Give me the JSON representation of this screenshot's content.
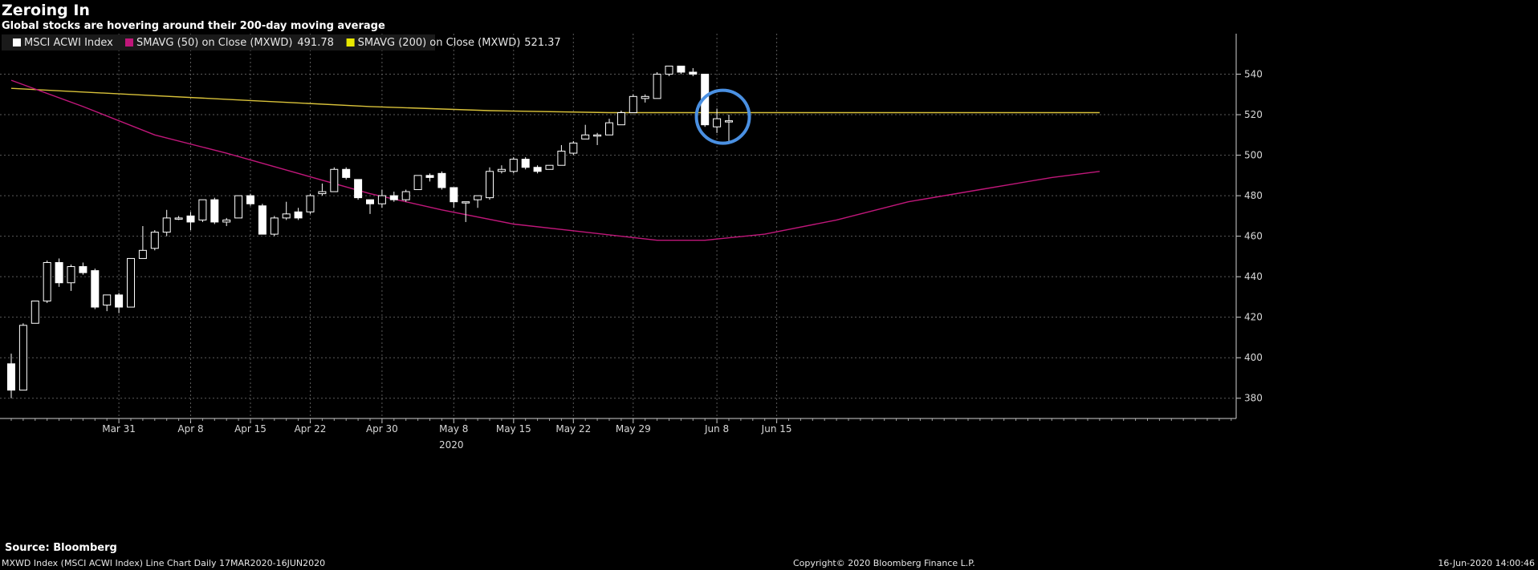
{
  "header": {
    "title": "Zeroing In",
    "subtitle": "Global stocks are hovering around their 200-day moving average"
  },
  "footer": {
    "source": "Source: Bloomberg",
    "left": "MXWD Index (MSCI ACWI Index) Line Chart  Daily 17MAR2020-16JUN2020",
    "center": "Copyright© 2020 Bloomberg Finance L.P.",
    "right": "16-Jun-2020 14:00:46"
  },
  "colors": {
    "background": "#000000",
    "grid": "#5a5a5a",
    "candle": "#ffffff",
    "sma50": "#c0177a",
    "sma200": "#d9c23a",
    "highlight_circle": "#4a90e2"
  },
  "chart_data": {
    "type": "candlestick",
    "year_label": "2020",
    "y_ticks": [
      380,
      400,
      420,
      440,
      460,
      480,
      500,
      520,
      540
    ],
    "ylim": [
      370,
      560
    ],
    "x_ticks": [
      "Mar 31",
      "Apr 8",
      "Apr 15",
      "Apr 22",
      "Apr 30",
      "May 8",
      "May 15",
      "May 22",
      "May 29",
      "Jun 8",
      "Jun 15"
    ],
    "x_tick_index": [
      9,
      15,
      20,
      25,
      31,
      37,
      42,
      47,
      52,
      59,
      64
    ],
    "legend": [
      {
        "label": "MSCI ACWI Index",
        "value": "",
        "color": "#ffffff"
      },
      {
        "label": "SMAVG (50)  on Close (MXWD)",
        "value": "491.78",
        "color": "#c0177a"
      },
      {
        "label": "SMAVG (200)  on Close (MXWD)",
        "value": "521.37",
        "color": "#e8e800"
      }
    ],
    "candles": [
      {
        "o": 397,
        "h": 402,
        "l": 380,
        "c": 384
      },
      {
        "o": 384,
        "h": 417,
        "l": 384,
        "c": 416
      },
      {
        "o": 417,
        "h": 428,
        "l": 417,
        "c": 428
      },
      {
        "o": 428,
        "h": 448,
        "l": 427,
        "c": 447
      },
      {
        "o": 447,
        "h": 449,
        "l": 435,
        "c": 437
      },
      {
        "o": 437,
        "h": 446,
        "l": 433,
        "c": 445
      },
      {
        "o": 445,
        "h": 447,
        "l": 441,
        "c": 442
      },
      {
        "o": 443,
        "h": 444,
        "l": 424,
        "c": 425
      },
      {
        "o": 426,
        "h": 431,
        "l": 423,
        "c": 431
      },
      {
        "o": 431,
        "h": 432,
        "l": 422,
        "c": 425
      },
      {
        "o": 425,
        "h": 449,
        "l": 425,
        "c": 449
      },
      {
        "o": 449,
        "h": 465,
        "l": 449,
        "c": 453
      },
      {
        "o": 454,
        "h": 463,
        "l": 453,
        "c": 462
      },
      {
        "o": 462,
        "h": 473,
        "l": 460,
        "c": 469
      },
      {
        "o": 469,
        "h": 470,
        "l": 468,
        "c": 469
      },
      {
        "o": 470,
        "h": 472,
        "l": 463,
        "c": 467
      },
      {
        "o": 468,
        "h": 478,
        "l": 467,
        "c": 478
      },
      {
        "o": 478,
        "h": 479,
        "l": 466,
        "c": 467
      },
      {
        "o": 467,
        "h": 469,
        "l": 465,
        "c": 468
      },
      {
        "o": 469,
        "h": 480,
        "l": 469,
        "c": 480
      },
      {
        "o": 480,
        "h": 481,
        "l": 475,
        "c": 476
      },
      {
        "o": 475,
        "h": 476,
        "l": 461,
        "c": 461
      },
      {
        "o": 461,
        "h": 470,
        "l": 460,
        "c": 469
      },
      {
        "o": 469,
        "h": 477,
        "l": 468,
        "c": 471
      },
      {
        "o": 472,
        "h": 474,
        "l": 468,
        "c": 469
      },
      {
        "o": 472,
        "h": 481,
        "l": 471,
        "c": 480
      },
      {
        "o": 481,
        "h": 486,
        "l": 480,
        "c": 482
      },
      {
        "o": 482,
        "h": 494,
        "l": 482,
        "c": 493
      },
      {
        "o": 493,
        "h": 494,
        "l": 488,
        "c": 489
      },
      {
        "o": 488,
        "h": 488,
        "l": 478,
        "c": 479
      },
      {
        "o": 478,
        "h": 478,
        "l": 471,
        "c": 476
      },
      {
        "o": 476,
        "h": 483,
        "l": 474,
        "c": 480
      },
      {
        "o": 480,
        "h": 482,
        "l": 477,
        "c": 478
      },
      {
        "o": 478,
        "h": 483,
        "l": 477,
        "c": 482
      },
      {
        "o": 483,
        "h": 490,
        "l": 483,
        "c": 490
      },
      {
        "o": 490,
        "h": 491,
        "l": 487,
        "c": 489
      },
      {
        "o": 491,
        "h": 492,
        "l": 483,
        "c": 484
      },
      {
        "o": 484,
        "h": 484,
        "l": 474,
        "c": 477
      },
      {
        "o": 477,
        "h": 477,
        "l": 467,
        "c": 477
      },
      {
        "o": 478,
        "h": 479,
        "l": 474,
        "c": 480
      },
      {
        "o": 479,
        "h": 494,
        "l": 478,
        "c": 492
      },
      {
        "o": 492,
        "h": 495,
        "l": 491,
        "c": 493
      },
      {
        "o": 492,
        "h": 499,
        "l": 491,
        "c": 498
      },
      {
        "o": 498,
        "h": 499,
        "l": 493,
        "c": 494
      },
      {
        "o": 494,
        "h": 495,
        "l": 491,
        "c": 492
      },
      {
        "o": 493,
        "h": 495,
        "l": 493,
        "c": 495
      },
      {
        "o": 495,
        "h": 505,
        "l": 495,
        "c": 502
      },
      {
        "o": 501,
        "h": 507,
        "l": 500,
        "c": 506
      },
      {
        "o": 508,
        "h": 515,
        "l": 508,
        "c": 510
      },
      {
        "o": 510,
        "h": 511,
        "l": 505,
        "c": 510
      },
      {
        "o": 510,
        "h": 518,
        "l": 510,
        "c": 516
      },
      {
        "o": 515,
        "h": 522,
        "l": 515,
        "c": 521
      },
      {
        "o": 521,
        "h": 530,
        "l": 521,
        "c": 529
      },
      {
        "o": 528,
        "h": 530,
        "l": 526,
        "c": 529
      },
      {
        "o": 528,
        "h": 541,
        "l": 528,
        "c": 540
      },
      {
        "o": 540,
        "h": 544,
        "l": 539,
        "c": 544
      },
      {
        "o": 544,
        "h": 544,
        "l": 540,
        "c": 541
      },
      {
        "o": 541,
        "h": 543,
        "l": 539,
        "c": 540
      },
      {
        "o": 540,
        "h": 540,
        "l": 514,
        "c": 515
      },
      {
        "o": 514,
        "h": 523,
        "l": 511,
        "c": 518
      },
      {
        "o": 517,
        "h": 520,
        "l": 507,
        "c": 517
      }
    ],
    "sma50": [
      [
        0,
        537
      ],
      [
        6,
        524
      ],
      [
        12,
        510
      ],
      [
        18,
        501
      ],
      [
        24,
        491
      ],
      [
        30,
        481
      ],
      [
        36,
        473
      ],
      [
        42,
        466
      ],
      [
        48,
        462
      ],
      [
        54,
        458
      ],
      [
        58,
        458
      ],
      [
        63,
        461
      ],
      [
        69,
        468
      ],
      [
        75,
        477
      ],
      [
        81,
        483
      ],
      [
        87,
        489
      ],
      [
        91,
        492
      ]
    ],
    "sma200": [
      [
        0,
        533
      ],
      [
        10,
        530
      ],
      [
        20,
        527
      ],
      [
        30,
        524
      ],
      [
        40,
        522
      ],
      [
        50,
        521
      ],
      [
        60,
        521
      ],
      [
        70,
        521
      ],
      [
        80,
        521
      ],
      [
        91,
        521
      ]
    ]
  }
}
